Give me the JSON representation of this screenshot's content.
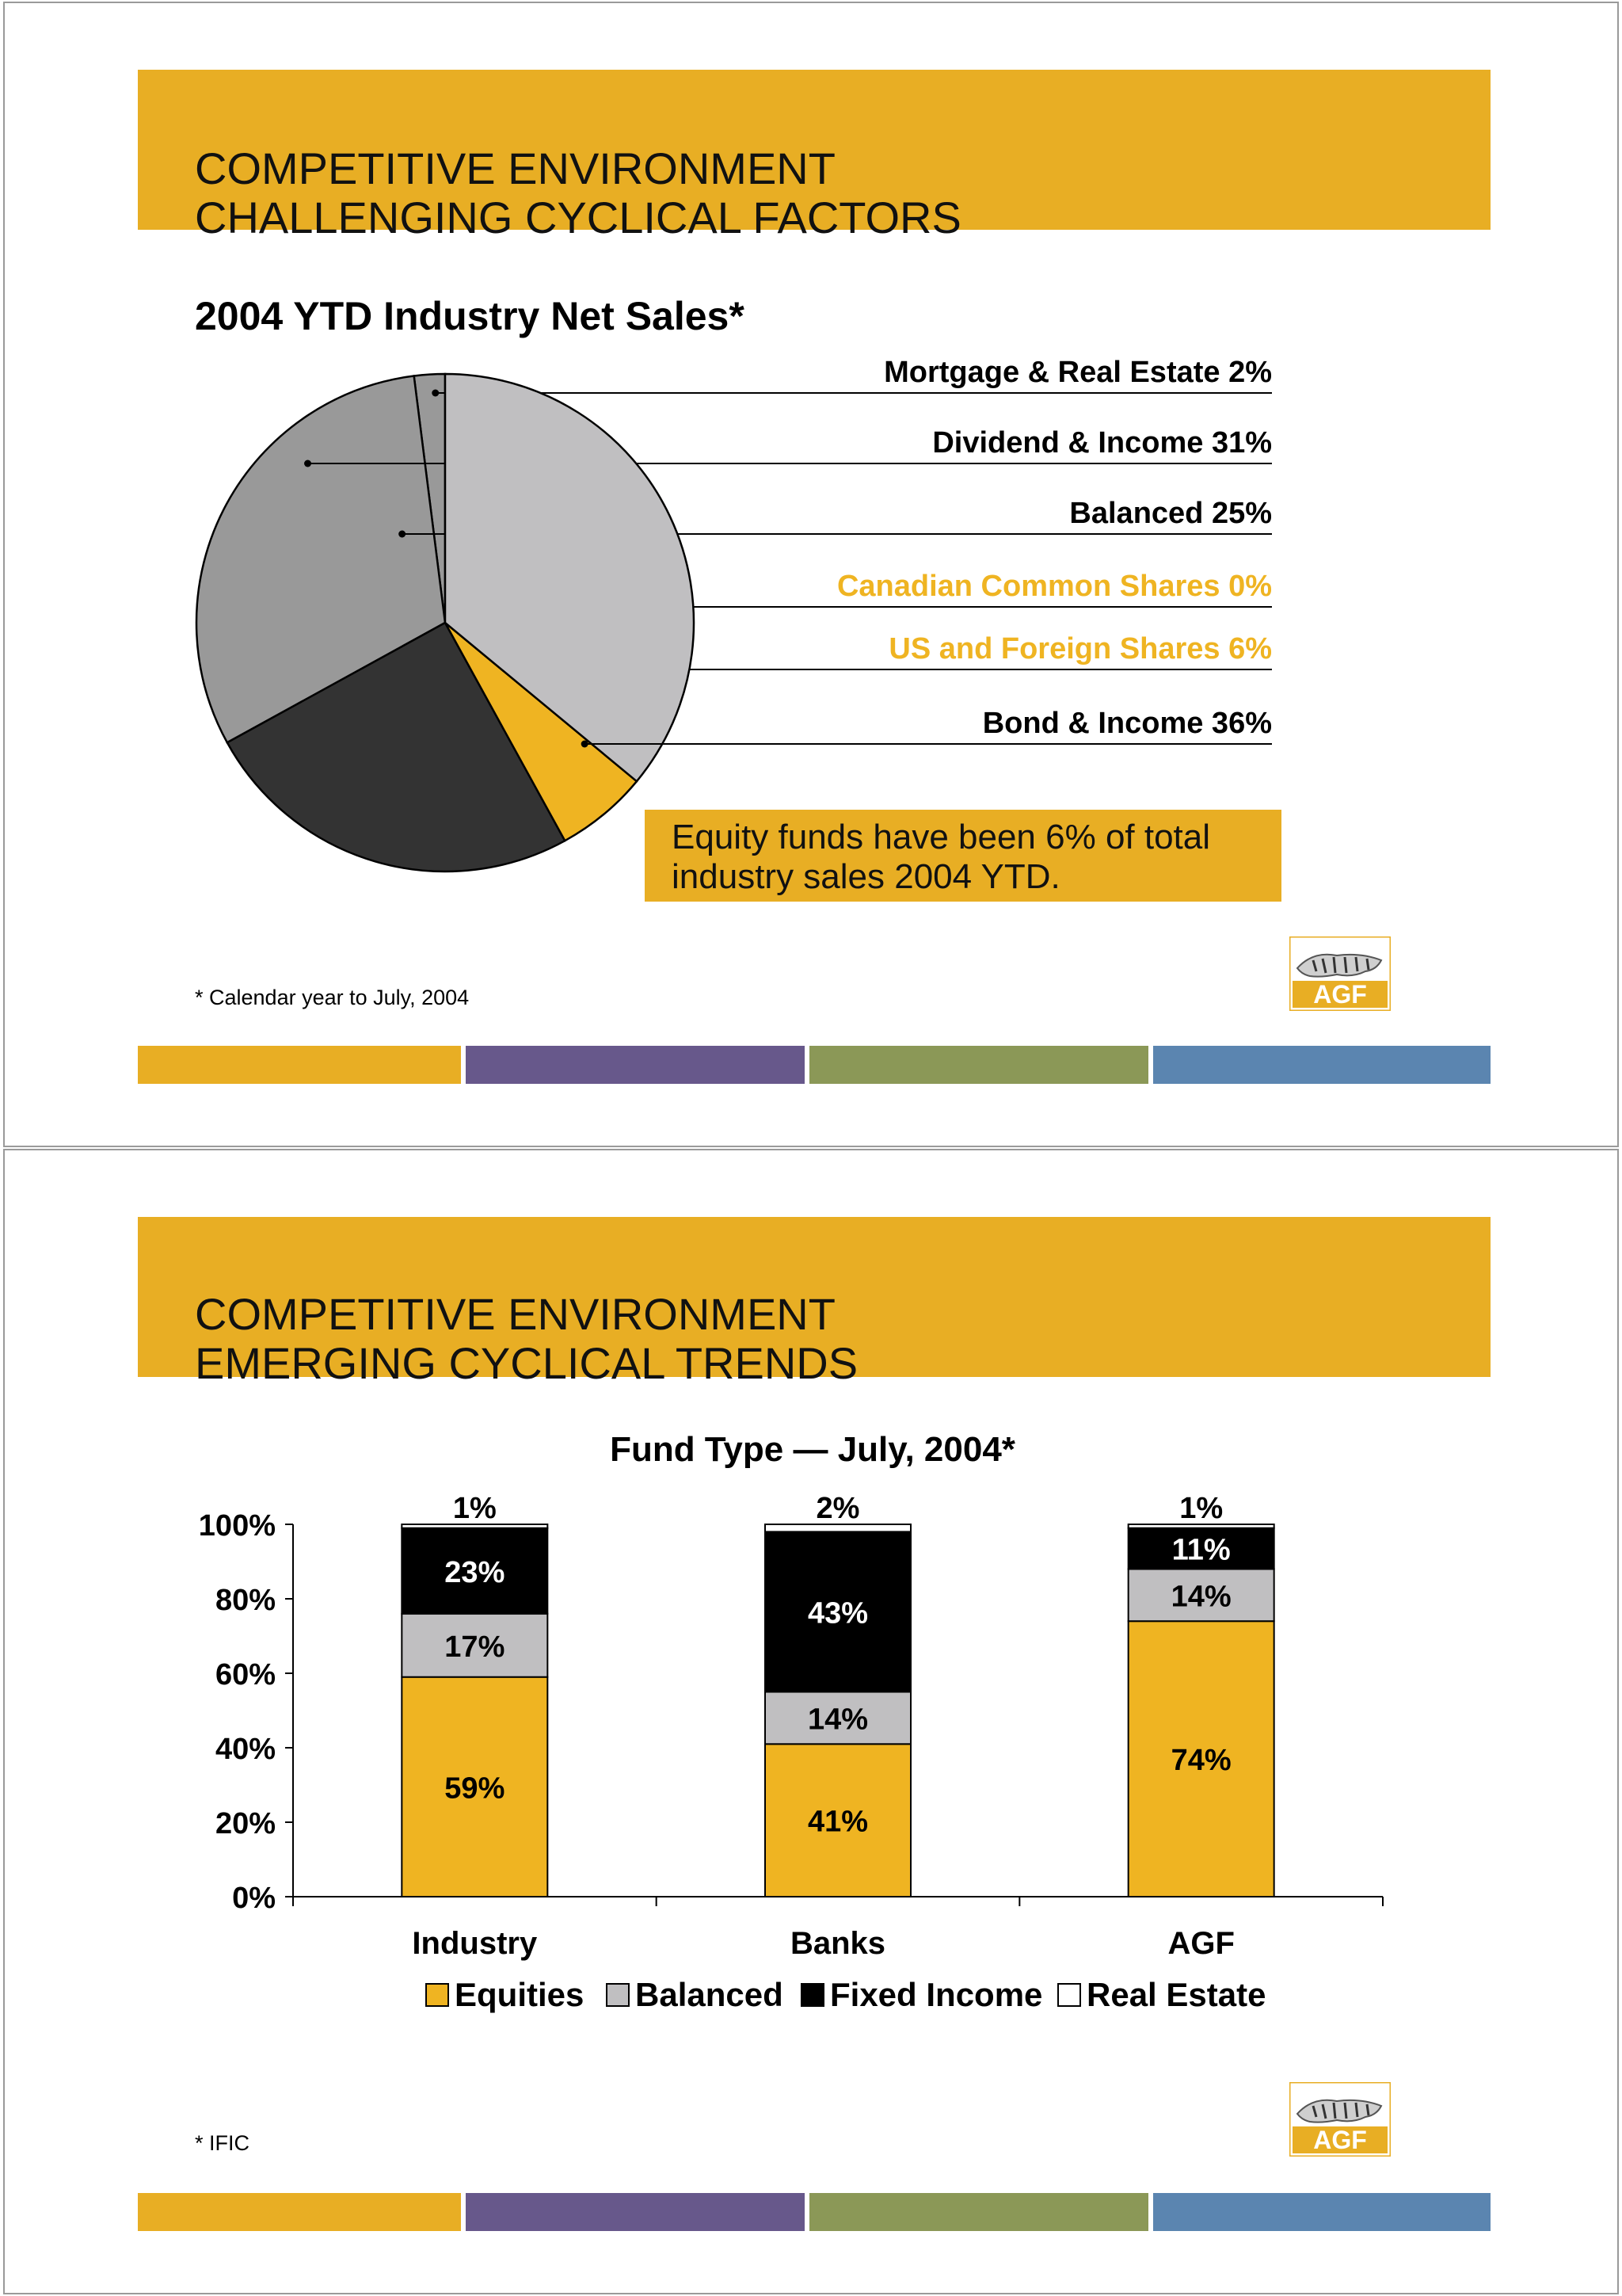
{
  "slide1": {
    "title_line1": "COMPETITIVE ENVIRONMENT",
    "title_line2": "CHALLENGING CYCLICAL FACTORS",
    "chart_heading": "2004 YTD Industry Net Sales*",
    "callout_line1": "Equity funds have been 6% of total",
    "callout_line2": "industry sales 2004 YTD.",
    "footnote": "* Calendar year to July, 2004",
    "logo_text": "AGF"
  },
  "slide2": {
    "title_line1": "COMPETITIVE ENVIRONMENT",
    "title_line2": "EMERGING CYCLICAL TRENDS",
    "footnote": "* IFIC",
    "logo_text": "AGF"
  },
  "colors": {
    "gold": "#e8ae24",
    "pie_gold": "#efb422",
    "purple": "#67588b",
    "olive": "#8b9857",
    "blue": "#5b85b0",
    "dark": "#333333",
    "mid_gray": "#999999",
    "light_gray": "#c0bfc1",
    "black": "#000000"
  },
  "chart_data": [
    {
      "type": "pie",
      "title": "2004 YTD Industry Net Sales*",
      "slices": [
        {
          "label": "Mortgage & Real Estate 2%",
          "value": 2,
          "color": "#999999",
          "label_color": "#000000"
        },
        {
          "label": "Dividend & Income 31%",
          "value": 31,
          "color": "#999999",
          "label_color": "#000000"
        },
        {
          "label": "Balanced 25%",
          "value": 25,
          "color": "#333333",
          "label_color": "#000000"
        },
        {
          "label": "Canadian Common Shares 0%",
          "value": 0,
          "color": "#efb422",
          "label_color": "#efb422"
        },
        {
          "label": "US and Foreign Shares 6%",
          "value": 6,
          "color": "#efb422",
          "label_color": "#efb422"
        },
        {
          "label": "Bond & Income 36%",
          "value": 36,
          "color": "#c0bfc1",
          "label_color": "#000000"
        }
      ]
    },
    {
      "type": "bar",
      "stacked": true,
      "title": "Fund Type — July, 2004*",
      "categories": [
        "Industry",
        "Banks",
        "AGF"
      ],
      "ylim": [
        0,
        100
      ],
      "yticks": [
        "0%",
        "20%",
        "40%",
        "60%",
        "80%",
        "100%"
      ],
      "series": [
        {
          "name": "Equities",
          "color": "#efb422",
          "values": [
            59,
            41,
            74
          ],
          "labels": [
            "59%",
            "41%",
            "74%"
          ]
        },
        {
          "name": "Balanced",
          "color": "#c0bfc1",
          "values": [
            17,
            14,
            14
          ],
          "labels": [
            "17%",
            "14%",
            "14%"
          ]
        },
        {
          "name": "Fixed Income",
          "color": "#000000",
          "values": [
            23,
            43,
            11
          ],
          "labels": [
            "23%",
            "43%",
            "11%"
          ]
        },
        {
          "name": "Real Estate",
          "color": "#ffffff",
          "values": [
            1,
            2,
            1
          ],
          "labels": [
            "1%",
            "2%",
            "1%"
          ]
        }
      ],
      "legend_position": "bottom"
    }
  ]
}
